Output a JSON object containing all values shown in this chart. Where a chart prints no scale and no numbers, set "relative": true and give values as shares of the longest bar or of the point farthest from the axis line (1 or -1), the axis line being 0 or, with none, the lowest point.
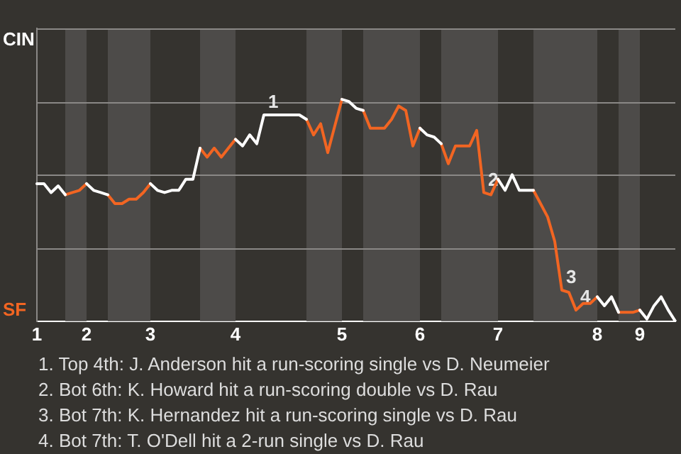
{
  "chart_data": {
    "type": "line",
    "relative": true,
    "categories": [
      "1",
      null,
      null,
      null,
      null,
      null,
      null,
      "2",
      null,
      null,
      null,
      null,
      null,
      null,
      null,
      null,
      "3",
      null,
      null,
      null,
      null,
      null,
      null,
      null,
      null,
      null,
      null,
      null,
      "4",
      null,
      null,
      null,
      null,
      null,
      null,
      null,
      null,
      null,
      null,
      null,
      null,
      null,
      null,
      "5",
      null,
      null,
      null,
      null,
      null,
      null,
      null,
      null,
      null,
      null,
      "6",
      null,
      null,
      null,
      null,
      null,
      null,
      null,
      null,
      null,
      null,
      "7",
      null,
      null,
      null,
      null,
      null,
      null,
      null,
      null,
      null,
      null,
      null,
      null,
      null,
      "8",
      null,
      null,
      null,
      null,
      null,
      "9",
      null,
      null,
      null,
      null,
      null
    ],
    "series": [
      {
        "name": "CIN",
        "color": "#ffffff",
        "values": [
          0.62,
          0.62,
          0.58,
          0.61,
          0.57,
          null,
          null,
          0.62,
          0.59,
          0.58,
          0.57,
          null,
          null,
          null,
          null,
          null,
          0.62,
          0.59,
          0.58,
          0.59,
          0.59,
          0.64,
          0.64,
          0.78,
          null,
          null,
          null,
          null,
          0.82,
          0.79,
          0.84,
          0.8,
          0.93,
          0.93,
          0.93,
          0.93,
          0.93,
          0.93,
          0.91,
          null,
          null,
          null,
          null,
          1,
          0.99,
          0.96,
          0.95,
          null,
          null,
          null,
          null,
          null,
          null,
          null,
          0.87,
          0.84,
          0.83,
          0.8,
          null,
          null,
          null,
          null,
          null,
          null,
          null,
          0.64,
          0.59,
          0.66,
          0.59,
          0.59,
          0.59,
          null,
          null,
          null,
          null,
          null,
          null,
          null,
          null,
          0.11,
          0.07,
          0.11,
          0.04,
          null,
          null,
          0.05,
          0.01,
          0.07,
          0.11,
          0.05,
          0
        ]
      },
      {
        "name": "SF",
        "color": "#f26522",
        "values": [
          null,
          null,
          null,
          null,
          0.57,
          0.58,
          0.59,
          0.62,
          null,
          null,
          0.57,
          0.53,
          0.53,
          0.55,
          0.55,
          0.58,
          0.62,
          null,
          null,
          null,
          null,
          null,
          null,
          0.78,
          0.74,
          0.78,
          0.74,
          0.78,
          0.82,
          null,
          null,
          null,
          null,
          null,
          null,
          null,
          null,
          null,
          0.91,
          0.84,
          0.89,
          0.76,
          0.88,
          1,
          null,
          null,
          0.95,
          0.87,
          0.87,
          0.87,
          0.91,
          0.97,
          0.95,
          0.79,
          0.87,
          null,
          null,
          0.8,
          0.71,
          0.79,
          0.79,
          0.79,
          0.86,
          0.58,
          0.57,
          0.64,
          null,
          null,
          null,
          null,
          0.59,
          0.53,
          0.47,
          0.36,
          0.14,
          0.13,
          0.05,
          0.08,
          0.08,
          0.11,
          null,
          null,
          0.04,
          0.04,
          0.04,
          0.05,
          null,
          null,
          null,
          null,
          null
        ]
      }
    ],
    "ref_lines": [
      {
        "axis": "y",
        "value": 0.33,
        "color": "#8a8886"
      },
      {
        "axis": "y",
        "value": 0.66,
        "color": "#8a8886"
      },
      {
        "axis": "y",
        "value": 0.99,
        "color": "#8a8886"
      },
      {
        "axis": "y",
        "value": 1.32,
        "color": "#8a8886"
      }
    ],
    "annotations": [
      {
        "text": "1",
        "y": 0.93
      },
      {
        "text": "2",
        "y": 0.58
      },
      {
        "text": "3",
        "y": 0.14
      },
      {
        "text": "4",
        "y": 0.05
      },
      "1. Top 4th: J. Anderson hit a run-scoring single vs D. Neumeier",
      "2. Bot 6th: K. Howard hit a run-scoring double vs D. Rau",
      "3. Bot 7th: K. Hernandez hit a run-scoring single vs D. Rau",
      "4. Bot 7th: T. O'Dell hit a 2-run single vs D. Rau"
    ]
  }
}
